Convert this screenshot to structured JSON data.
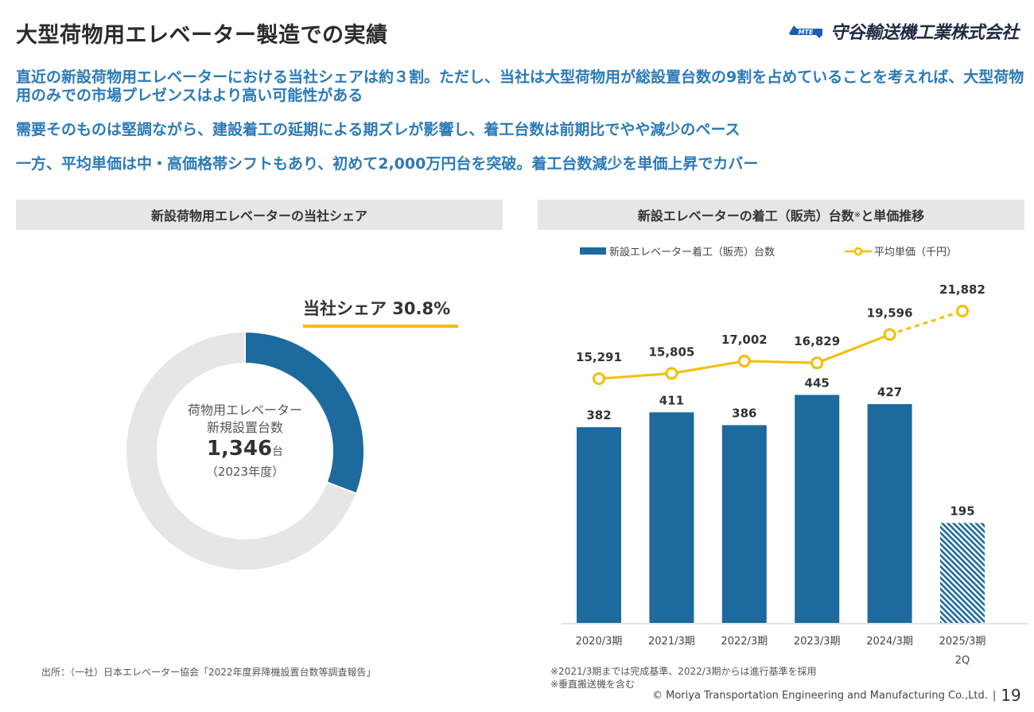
{
  "header": {
    "title": "大型荷物用エレベーター製造での実績",
    "logo_mark": "MTE",
    "company": "守谷輸送機工業株式会社"
  },
  "messages": [
    "直近の新設荷物用エレベーターにおける当社シェアは約３割。ただし、当社は大型荷物用が総設置台数の9割を占めていることを考えれば、大型荷物用のみでの市場プレゼンスはより高い可能性がある",
    "需要そのものは堅調ながら、建設着工の延期による期ズレが影響し、着工台数は前期比でやや減少のペース",
    "一方、平均単価は中・高価格帯シフトもあり、初めて2,000万円台を突破。着工台数減少を単価上昇でカバー"
  ],
  "left_panel": {
    "header": "新設荷物用エレベーターの当社シェア",
    "share_label": "当社シェア 30.8%",
    "center_line1": "荷物用エレベーター",
    "center_line2": "新規設置台数",
    "center_value": "1,346",
    "center_unit": "台",
    "center_year": "（2023年度）",
    "source": "出所：（一社）日本エレベーター協会「2022年度昇降機設置台数等調査報告」"
  },
  "right_panel": {
    "header": "新設エレベーターの着工（販売）台数",
    "header_mark": "※",
    "header_tail": "と単価推移",
    "legend_bar": "新設エレベーター着工（販売）台数",
    "legend_line": "平均単価（千円）",
    "note1": "※2021/3期までは完成基準、2022/3期からは進行基準を採用",
    "note2": "※垂直搬送機を含む"
  },
  "footer": {
    "copyright": "© Moriya Transportation Engineering and Manufacturing Co.,Ltd.",
    "separator": "|",
    "page": "19"
  },
  "colors": {
    "accent_blue": "#1c6a9e",
    "message_blue": "#2a7ab8",
    "accent_yellow": "#f5bd00",
    "donut_gray": "#e6e6e6"
  },
  "chart_data": [
    {
      "type": "pie",
      "variant": "donut",
      "title": "新設荷物用エレベーターの当社シェア",
      "slices": [
        {
          "name": "当社",
          "value": 30.8,
          "color": "#1c6a9e"
        },
        {
          "name": "その他",
          "value": 69.2,
          "color": "#e6e6e6"
        }
      ],
      "total_units": 1346,
      "annotation": "当社シェア 30.8%"
    },
    {
      "type": "bar",
      "title": "新設エレベーターの着工（販売）台数※と単価推移",
      "categories": [
        "2020/3期",
        "2021/3期",
        "2022/3期",
        "2023/3期",
        "2024/3期",
        "2025/3期"
      ],
      "category_sublabels": [
        "",
        "",
        "",
        "",
        "",
        "2Q"
      ],
      "series": [
        {
          "name": "新設エレベーター着工（販売）台数",
          "kind": "bar",
          "values": [
            382,
            411,
            386,
            445,
            427,
            195
          ],
          "labels": [
            "382",
            "411",
            "386",
            "445",
            "427",
            "195"
          ],
          "hatched": [
            false,
            false,
            false,
            false,
            false,
            true
          ],
          "color": "#1c6a9e"
        },
        {
          "name": "平均単価（千円）",
          "kind": "line",
          "values": [
            15291,
            15805,
            17002,
            16829,
            19596,
            21882
          ],
          "labels": [
            "15,291",
            "15,805",
            "17,002",
            "16,829",
            "19,596",
            "21,882"
          ],
          "dashed_last_segment": true,
          "color": "#f5bd00"
        }
      ],
      "ylim_bar": [
        0,
        450
      ],
      "legend": "top",
      "grid": false
    }
  ]
}
